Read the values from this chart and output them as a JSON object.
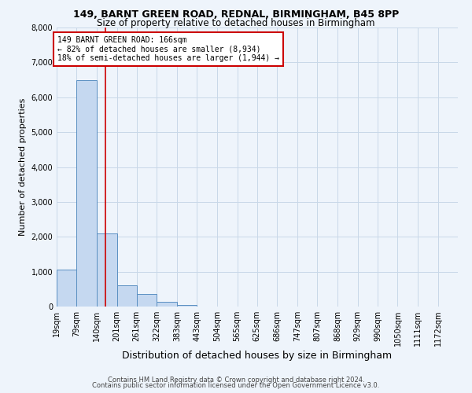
{
  "title1": "149, BARNT GREEN ROAD, REDNAL, BIRMINGHAM, B45 8PP",
  "title2": "Size of property relative to detached houses in Birmingham",
  "xlabel": "Distribution of detached houses by size in Birmingham",
  "ylabel": "Number of detached properties",
  "footer1": "Contains HM Land Registry data © Crown copyright and database right 2024.",
  "footer2": "Contains public sector information licensed under the Open Government Licence v3.0.",
  "annotation_line1": "149 BARNT GREEN ROAD: 166sqm",
  "annotation_line2": "← 82% of detached houses are smaller (8,934)",
  "annotation_line3": "18% of semi-detached houses are larger (1,944) →",
  "bar_edges": [
    19,
    79,
    140,
    201,
    261,
    322,
    383,
    443,
    504,
    565,
    625,
    686,
    747,
    807,
    868,
    929,
    990,
    1050,
    1111,
    1172,
    1232
  ],
  "bar_heights": [
    1050,
    6500,
    2100,
    600,
    370,
    130,
    50,
    10,
    0,
    0,
    0,
    0,
    0,
    0,
    0,
    0,
    0,
    0,
    0,
    0
  ],
  "bar_color": "#c5d8f0",
  "bar_edge_color": "#5a8fc2",
  "grid_color": "#c8d8e8",
  "background_color": "#eef4fb",
  "vline_x": 166,
  "vline_color": "#cc0000",
  "ylim": [
    0,
    8000
  ],
  "yticks": [
    0,
    1000,
    2000,
    3000,
    4000,
    5000,
    6000,
    7000,
    8000
  ],
  "annotation_box_color": "#cc0000",
  "annotation_box_fill": "#ffffff",
  "title1_fontsize": 9,
  "title2_fontsize": 8.5,
  "ylabel_fontsize": 8,
  "xlabel_fontsize": 9,
  "tick_fontsize": 7,
  "footer_fontsize": 6,
  "ann_fontsize": 7
}
